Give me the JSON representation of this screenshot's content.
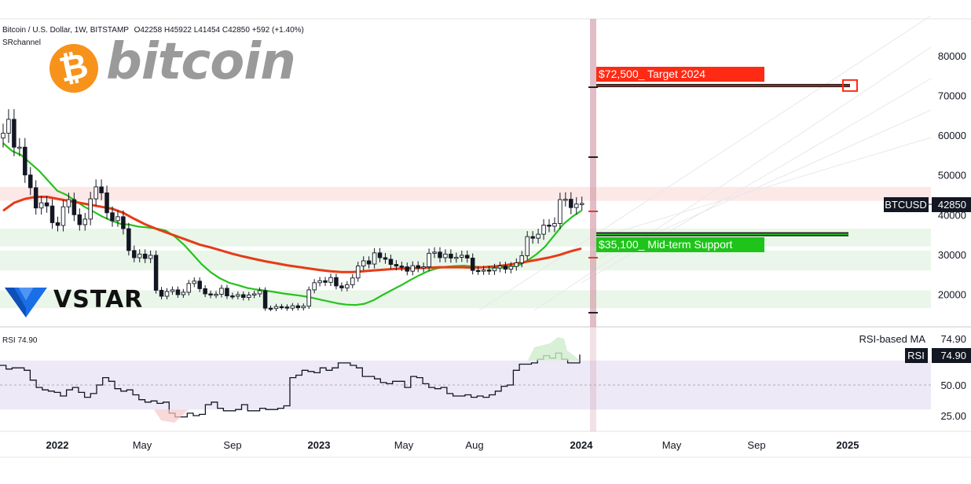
{
  "header": {
    "symbol_line": "Bitcoin / U.S. Dollar, 1W, BITSTAMP",
    "ohlc": "O42258 H45922 L41454 C42850 +592 (+1.40%)",
    "indicator": "SRchannel"
  },
  "logos": {
    "bitcoin_mark": "₿",
    "bitcoin_word": "bitcoin",
    "vstar_word": "VSTAR",
    "bitcoin_color": "#f7931a",
    "vstar_color": "#1a6fe6"
  },
  "colors": {
    "candle": "#131722",
    "sma_fast": "#27c21e",
    "sma_slow": "#e83a17",
    "target": "#ff2a14",
    "support": "#1ec41a",
    "event_band": "#d39aa8",
    "resistance_zone": "#fde8e8",
    "support_zone": "#e9f6e9",
    "rsi_band": "#ede9f6"
  },
  "price_axis": {
    "labels": [
      "80000",
      "70000",
      "60000",
      "50000",
      "40000",
      "30000",
      "20000"
    ]
  },
  "time_axis": {
    "labels": [
      "2022",
      "May",
      "Sep",
      "2023",
      "May",
      "Aug",
      "2024",
      "May",
      "Sep",
      "2025"
    ]
  },
  "annotations": {
    "target_label": "$72,500_ Target 2024",
    "support_label": "$35,100_ Mid-term Support",
    "price_tag_symbol": "BTCUSD",
    "price_tag_value": "42850"
  },
  "rsi_panel": {
    "title": "RSI",
    "value": "74.90",
    "ma_label": "RSI-based MA",
    "ma_value": "74.90",
    "tag_label": "RSI",
    "tag_value": "74.90",
    "axis_labels": [
      "50.00",
      "25.00"
    ]
  },
  "chart_data": [
    {
      "type": "candlestick",
      "title": "Bitcoin / U.S. Dollar, 1W, BITSTAMP",
      "x_labels": [
        "2022",
        "May",
        "Sep",
        "2023",
        "May",
        "Aug",
        "2024",
        "May",
        "Sep",
        "2025"
      ],
      "ylim": [
        14000,
        87000
      ],
      "y_ticks": [
        20000,
        30000,
        40000,
        50000,
        60000,
        70000,
        80000
      ],
      "last": {
        "open": 42258,
        "high": 45922,
        "low": 41454,
        "close": 42850,
        "change": 592,
        "change_pct": 1.4
      },
      "closes": [
        60500,
        64000,
        57000,
        57000,
        50000,
        46800,
        41700,
        43000,
        42200,
        38000,
        37300,
        42000,
        43800,
        40000,
        37500,
        38900,
        44000,
        47000,
        45500,
        40500,
        38500,
        39500,
        36500,
        31000,
        29200,
        30100,
        29000,
        29800,
        21000,
        19500,
        20700,
        21100,
        19900,
        20500,
        22700,
        23300,
        21400,
        20100,
        19800,
        20000,
        21500,
        19600,
        19500,
        19900,
        19200,
        19800,
        20100,
        20900,
        16500,
        16400,
        16900,
        16800,
        16500,
        17100,
        16600,
        17000,
        21100,
        22900,
        23400,
        23000,
        24200,
        22100,
        21600,
        22400,
        24100,
        27100,
        28400,
        27600,
        30400,
        29200,
        28800,
        27500,
        27100,
        26900,
        25800,
        27200,
        26600,
        26900,
        30300,
        30600,
        29200,
        30100,
        29100,
        29300,
        29800,
        29100,
        26000,
        25900,
        26100,
        25900,
        26600,
        27100,
        26300,
        27000,
        27900,
        29700,
        34500,
        34100,
        35100,
        37400,
        37100,
        37800,
        43800,
        43900,
        41800,
        42700,
        42850
      ],
      "sma_fast_approx": [
        58000,
        56000,
        55000,
        53000,
        51000,
        48500,
        46000,
        45000,
        43500,
        42000,
        40800,
        39500,
        38500,
        37700,
        37500,
        37000,
        36800,
        36500,
        36000,
        34500,
        32500,
        30000,
        27500,
        25500,
        24000,
        22900,
        22300,
        21600,
        21200,
        20900,
        20600,
        20200,
        19900,
        19600,
        19200,
        18700,
        18200,
        17700,
        17400,
        17300,
        17600,
        18500,
        19800,
        21000,
        22200,
        23500,
        24700,
        25800,
        26500,
        26900,
        27100,
        27200,
        27000,
        26800,
        26700,
        26700,
        26800,
        27200,
        28400,
        30000,
        32000,
        34800,
        37600,
        39500,
        41000
      ],
      "sma_slow_approx": [
        41000,
        43000,
        44000,
        44500,
        44500,
        44000,
        43500,
        43000,
        42500,
        42000,
        41500,
        40500,
        39000,
        37600,
        36500,
        35500,
        34500,
        33500,
        32500,
        31800,
        31000,
        30200,
        29500,
        28900,
        28300,
        27800,
        27300,
        26900,
        26500,
        26100,
        25800,
        25600,
        25600,
        25800,
        26000,
        26200,
        26400,
        26500,
        26600,
        26700,
        26800,
        26800,
        26800,
        26700,
        26800,
        27000,
        27300,
        27700,
        28200,
        28700,
        29200,
        29900,
        30800,
        31500
      ]
    },
    {
      "type": "line",
      "title": "RSI",
      "value": 74.9,
      "y_ticks": [
        25.0,
        50.0
      ],
      "band": [
        30,
        70
      ],
      "values": [
        66,
        63,
        64,
        64,
        62,
        54,
        48,
        46,
        45,
        44,
        41,
        46,
        48,
        44,
        40,
        43,
        50,
        56,
        53,
        47,
        45,
        46,
        42,
        38,
        36,
        37,
        35,
        36,
        27,
        24,
        24,
        27,
        25,
        26,
        34,
        36,
        31,
        29,
        29,
        30,
        34,
        29,
        29,
        31,
        30,
        30,
        31,
        33,
        56,
        58,
        62,
        61,
        60,
        64,
        62,
        64,
        68,
        68,
        66,
        64,
        57,
        57,
        55,
        52,
        51,
        53,
        53,
        48,
        57,
        56,
        51,
        48,
        47,
        48,
        43,
        41,
        41,
        42,
        40,
        41,
        40,
        42,
        45,
        49,
        50,
        62,
        67,
        67,
        68,
        71,
        74,
        72,
        76,
        71,
        68,
        68,
        74.9
      ]
    }
  ]
}
